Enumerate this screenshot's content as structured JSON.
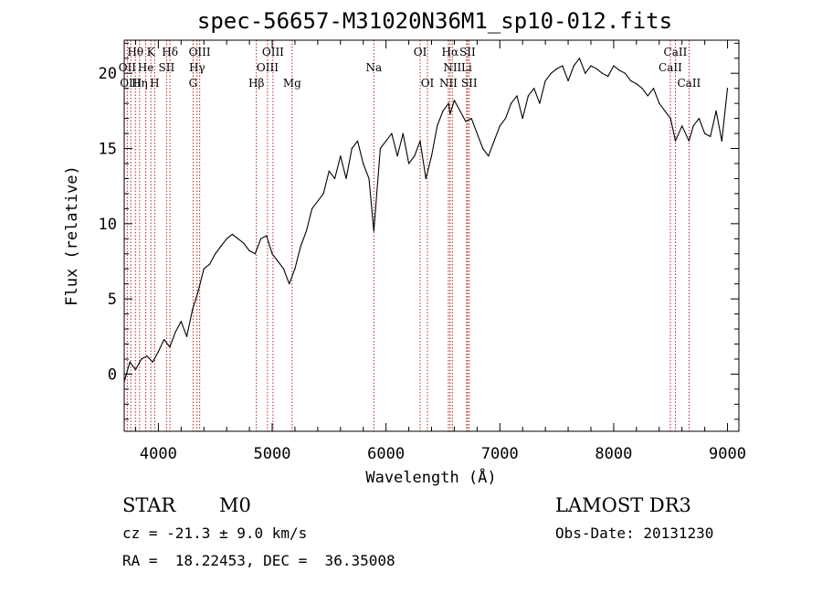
{
  "chart_data": {
    "type": "line",
    "title": "spec-56657-M31020N36M1_sp10-012.fits",
    "xlabel": "Wavelength (Å)",
    "ylabel": "Flux (relative)",
    "xlim": [
      3700,
      9100
    ],
    "ylim": [
      -3.8,
      22.2
    ],
    "xticks": [
      4000,
      5000,
      6000,
      7000,
      8000,
      9000
    ],
    "yticks": [
      0,
      5,
      10,
      15,
      20
    ],
    "xtick_labels": [
      "4000",
      "5000",
      "6000",
      "7000",
      "8000",
      "9000"
    ],
    "ytick_labels": [
      "0",
      "5",
      "10",
      "15",
      "20"
    ],
    "line_color": "#000000",
    "marker_color": "#b22222",
    "spectrum": {
      "x": [
        3700,
        3750,
        3800,
        3850,
        3900,
        3950,
        4000,
        4050,
        4100,
        4150,
        4200,
        4250,
        4300,
        4350,
        4400,
        4450,
        4500,
        4550,
        4600,
        4650,
        4700,
        4750,
        4800,
        4850,
        4900,
        4950,
        5000,
        5050,
        5100,
        5150,
        5200,
        5250,
        5300,
        5350,
        5400,
        5450,
        5500,
        5550,
        5600,
        5650,
        5700,
        5750,
        5800,
        5850,
        5893,
        5950,
        6000,
        6050,
        6100,
        6150,
        6200,
        6250,
        6300,
        6350,
        6400,
        6450,
        6500,
        6550,
        6563,
        6600,
        6650,
        6700,
        6750,
        6800,
        6850,
        6900,
        6950,
        7000,
        7050,
        7100,
        7150,
        7200,
        7250,
        7300,
        7350,
        7400,
        7450,
        7500,
        7550,
        7600,
        7650,
        7700,
        7750,
        7800,
        7850,
        7900,
        7950,
        8000,
        8050,
        8100,
        8150,
        8200,
        8250,
        8300,
        8350,
        8400,
        8450,
        8500,
        8542,
        8600,
        8662,
        8700,
        8750,
        8800,
        8850,
        8900,
        8950,
        9000
      ],
      "y": [
        -0.5,
        0.8,
        0.3,
        1.0,
        1.2,
        0.8,
        1.5,
        2.3,
        1.8,
        2.8,
        3.5,
        2.5,
        4.3,
        5.5,
        7.0,
        7.3,
        8.0,
        8.5,
        9.0,
        9.3,
        9.0,
        8.7,
        8.2,
        8.0,
        9.0,
        9.2,
        8.0,
        7.5,
        7.0,
        6.0,
        7.0,
        8.5,
        9.5,
        11.0,
        11.5,
        12.0,
        13.5,
        13.0,
        14.5,
        13.0,
        15.0,
        15.5,
        14.0,
        13.0,
        9.5,
        15.0,
        15.5,
        16.0,
        14.5,
        16.0,
        14.0,
        14.5,
        15.5,
        13.0,
        14.5,
        16.5,
        17.5,
        18.0,
        17.3,
        18.2,
        17.5,
        16.8,
        17.0,
        16.0,
        15.0,
        14.5,
        15.5,
        16.5,
        17.0,
        18.0,
        18.5,
        17.0,
        18.5,
        19.0,
        18.0,
        19.5,
        20.0,
        20.3,
        20.5,
        19.5,
        20.5,
        21.0,
        20.0,
        20.5,
        20.3,
        20.0,
        19.8,
        20.5,
        20.2,
        20.0,
        19.5,
        19.3,
        19.0,
        18.5,
        19.0,
        18.0,
        17.5,
        17.0,
        15.5,
        16.5,
        15.5,
        16.5,
        17.0,
        16.0,
        15.8,
        17.5,
        15.5,
        19.0
      ]
    },
    "spectral_lines": [
      {
        "label": "Hθ",
        "wl": 3798,
        "row": 0
      },
      {
        "label": "K",
        "wl": 3934,
        "row": 0
      },
      {
        "label": "Hδ",
        "wl": 4102,
        "row": 0
      },
      {
        "label": "OIII",
        "wl": 4363,
        "row": 0
      },
      {
        "label": "OIII",
        "wl": 5007,
        "row": 0
      },
      {
        "label": "OI",
        "wl": 6300,
        "row": 0
      },
      {
        "label": "Hα",
        "wl": 6563,
        "row": 0
      },
      {
        "label": "SII",
        "wl": 6716,
        "row": 0
      },
      {
        "label": "CaII",
        "wl": 8542,
        "row": 0
      },
      {
        "label": "OII",
        "wl": 3727,
        "row": 1
      },
      {
        "label": "He",
        "wl": 3889,
        "row": 1
      },
      {
        "label": "SII",
        "wl": 4072,
        "row": 1
      },
      {
        "label": "Hγ",
        "wl": 4340,
        "row": 1
      },
      {
        "label": "OIII",
        "wl": 4959,
        "row": 1
      },
      {
        "label": "Na",
        "wl": 5893,
        "row": 1
      },
      {
        "label": "NII",
        "wl": 6583,
        "row": 1
      },
      {
        "label": "Li",
        "wl": 6708,
        "row": 1
      },
      {
        "label": "CaII",
        "wl": 8498,
        "row": 1
      },
      {
        "label": "OIII",
        "wl": 3758,
        "row": 2
      },
      {
        "label": "Hη",
        "wl": 3835,
        "row": 2
      },
      {
        "label": "H",
        "wl": 3968,
        "row": 2
      },
      {
        "label": "G",
        "wl": 4305,
        "row": 2
      },
      {
        "label": "Hβ",
        "wl": 4861,
        "row": 2
      },
      {
        "label": "Mg",
        "wl": 5175,
        "row": 2
      },
      {
        "label": "OI",
        "wl": 6364,
        "row": 2
      },
      {
        "label": "NII",
        "wl": 6548,
        "row": 2
      },
      {
        "label": "SII",
        "wl": 6731,
        "row": 2
      },
      {
        "label": "CaII",
        "wl": 8662,
        "row": 2
      }
    ]
  },
  "footer": {
    "classification": "STAR",
    "subclass": "M0",
    "survey": "LAMOST DR3",
    "cz": "cz = -21.3 ± 9.0 km/s",
    "obs_date": "Obs-Date: 20131230",
    "coords": "RA =  18.22453, DEC =  36.35008"
  }
}
